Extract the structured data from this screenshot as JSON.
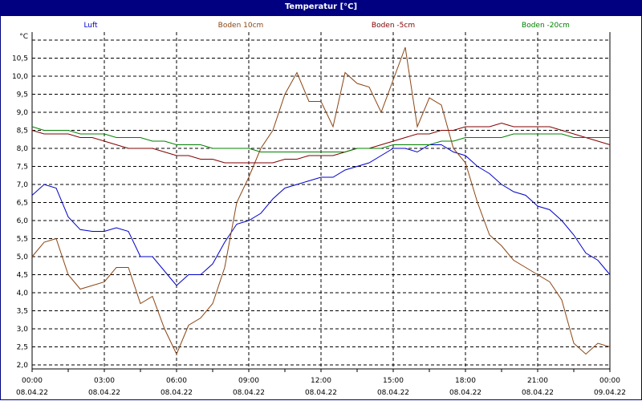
{
  "title": "Temperatur [°C]",
  "chart_data": {
    "type": "line",
    "title": "Temperatur [°C]",
    "xlabel": "",
    "ylabel": "°C",
    "ylim": [
      2.0,
      11.0
    ],
    "yticks": [
      "2,0",
      "2,5",
      "3,0",
      "3,5",
      "4,0",
      "4,5",
      "5,0",
      "5,5",
      "6,0",
      "6,5",
      "7,0",
      "7,5",
      "8,0",
      "8,5",
      "9,0",
      "9,5",
      "10,0",
      "10,5"
    ],
    "xticks": [
      {
        "time": "00:00",
        "date": "08.04.22"
      },
      {
        "time": "03:00",
        "date": "08.04.22"
      },
      {
        "time": "06:00",
        "date": "08.04.22"
      },
      {
        "time": "09:00",
        "date": "08.04.22"
      },
      {
        "time": "12:00",
        "date": "08.04.22"
      },
      {
        "time": "15:00",
        "date": "08.04.22"
      },
      {
        "time": "18:00",
        "date": "08.04.22"
      },
      {
        "time": "21:00",
        "date": "08.04.22"
      },
      {
        "time": "00:00",
        "date": "09.04.22"
      }
    ],
    "grid": true,
    "legend_position": "top",
    "x_hours": [
      0,
      0.5,
      1,
      1.5,
      2,
      2.5,
      3,
      3.5,
      4,
      4.5,
      5,
      5.5,
      6,
      6.5,
      7,
      7.5,
      8,
      8.5,
      9,
      9.5,
      10,
      10.5,
      11,
      11.5,
      12,
      12.5,
      13,
      13.5,
      14,
      14.5,
      15,
      15.5,
      16,
      16.5,
      17,
      17.5,
      18,
      18.5,
      19,
      19.5,
      20,
      20.5,
      21,
      21.5,
      22,
      22.5,
      23,
      23.5,
      24
    ],
    "series": [
      {
        "name": "Luft",
        "color": "#0000cc",
        "values": [
          6.7,
          7.0,
          6.9,
          6.1,
          5.75,
          5.7,
          5.7,
          5.8,
          5.7,
          5.0,
          5.0,
          4.6,
          4.2,
          4.5,
          4.5,
          4.8,
          5.4,
          5.9,
          6.0,
          6.2,
          6.6,
          6.9,
          7.0,
          7.1,
          7.2,
          7.2,
          7.4,
          7.5,
          7.6,
          7.8,
          8.0,
          8.0,
          7.9,
          8.1,
          8.1,
          7.9,
          7.8,
          7.5,
          7.3,
          7.0,
          6.8,
          6.7,
          6.4,
          6.3,
          6.0,
          5.6,
          5.1,
          4.9,
          4.5
        ]
      },
      {
        "name": "Boden 10cm",
        "color": "#8b4513",
        "values": [
          5.0,
          5.4,
          5.5,
          4.5,
          4.1,
          4.2,
          4.3,
          4.7,
          4.7,
          3.7,
          3.9,
          3.0,
          2.3,
          3.1,
          3.3,
          3.7,
          4.7,
          6.5,
          7.2,
          8.0,
          8.5,
          9.5,
          10.1,
          9.3,
          9.3,
          8.6,
          10.1,
          9.8,
          9.7,
          9.0,
          9.9,
          10.8,
          8.6,
          9.4,
          9.2,
          8.0,
          7.6,
          6.5,
          5.6,
          5.3,
          4.9,
          4.7,
          4.5,
          4.3,
          3.8,
          2.6,
          2.3,
          2.6,
          2.5
        ]
      },
      {
        "name": "Boden -5cm",
        "color": "#800000",
        "values": [
          8.5,
          8.4,
          8.4,
          8.4,
          8.3,
          8.3,
          8.2,
          8.1,
          8.0,
          8.0,
          8.0,
          7.9,
          7.8,
          7.8,
          7.7,
          7.7,
          7.6,
          7.6,
          7.6,
          7.6,
          7.6,
          7.7,
          7.7,
          7.8,
          7.8,
          7.8,
          7.9,
          8.0,
          8.0,
          8.1,
          8.2,
          8.3,
          8.4,
          8.4,
          8.5,
          8.5,
          8.6,
          8.6,
          8.6,
          8.7,
          8.6,
          8.6,
          8.6,
          8.6,
          8.5,
          8.4,
          8.3,
          8.2,
          8.1
        ]
      },
      {
        "name": "Boden -20cm",
        "color": "#008000",
        "values": [
          8.6,
          8.5,
          8.5,
          8.5,
          8.4,
          8.4,
          8.4,
          8.3,
          8.3,
          8.3,
          8.2,
          8.2,
          8.1,
          8.1,
          8.1,
          8.0,
          8.0,
          8.0,
          8.0,
          7.9,
          7.9,
          7.9,
          7.9,
          7.9,
          7.9,
          7.9,
          7.9,
          8.0,
          8.0,
          8.0,
          8.1,
          8.1,
          8.1,
          8.1,
          8.2,
          8.2,
          8.3,
          8.3,
          8.3,
          8.3,
          8.4,
          8.4,
          8.4,
          8.4,
          8.4,
          8.3,
          8.3,
          8.3,
          8.3
        ]
      }
    ]
  }
}
